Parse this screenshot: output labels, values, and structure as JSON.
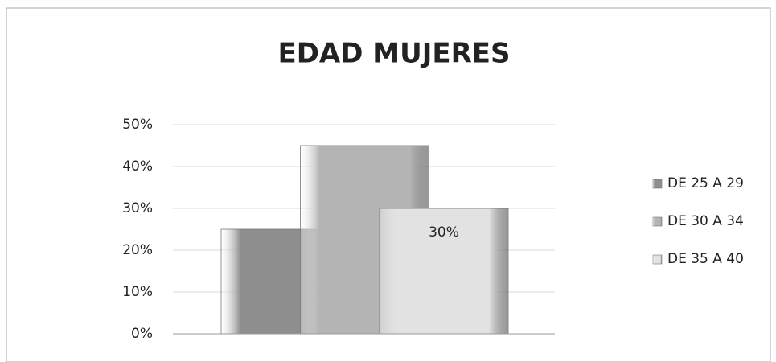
{
  "chart_data": {
    "type": "bar",
    "title": "EDAD MUJERES",
    "categories": [
      null
    ],
    "series": [
      {
        "name": "DE 25 A 29",
        "color": "#8e8e8e",
        "values": [
          25
        ]
      },
      {
        "name": "DE 30 A 34",
        "color": "#b4b4b4",
        "values": [
          45
        ]
      },
      {
        "name": "DE 35 A 40",
        "color": "#e2e2e2",
        "values": [
          30
        ],
        "value_labels": [
          "30%"
        ]
      }
    ],
    "ylim": [
      0,
      50
    ],
    "yticks": [
      {
        "value": 0,
        "label": "0%"
      },
      {
        "value": 10,
        "label": "10%"
      },
      {
        "value": 20,
        "label": "20%"
      },
      {
        "value": 30,
        "label": "30%"
      },
      {
        "value": 40,
        "label": "40%"
      },
      {
        "value": 50,
        "label": "50%"
      }
    ],
    "grid": true,
    "legend": "right"
  }
}
